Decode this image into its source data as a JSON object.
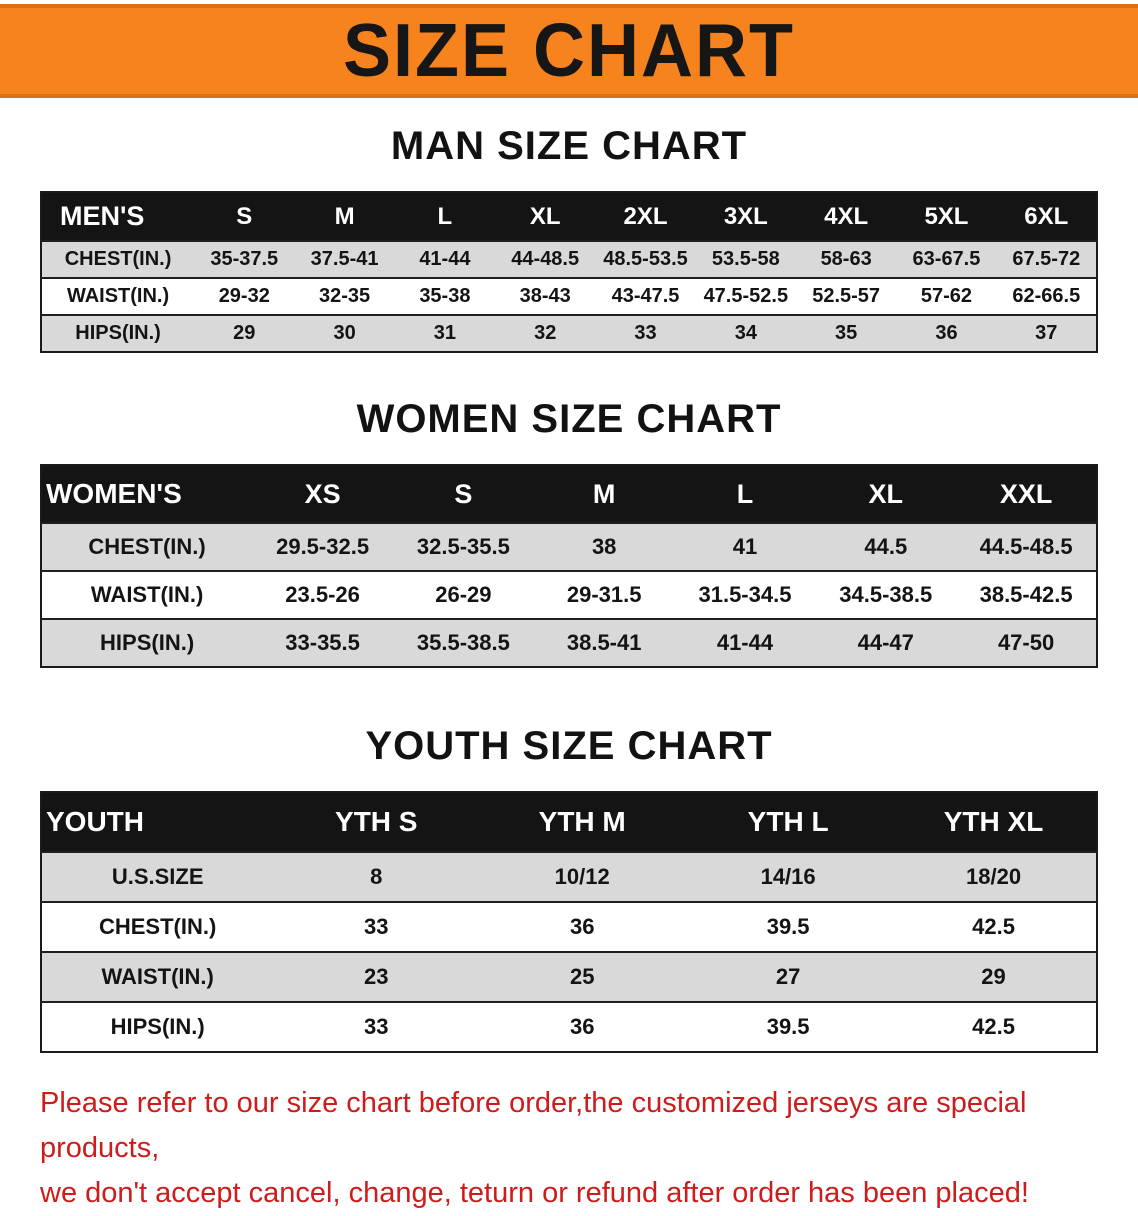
{
  "banner": {
    "title": "SIZE CHART",
    "bg_color": "#f6831d"
  },
  "sections": {
    "men": {
      "heading": "MAN SIZE CHART",
      "table": {
        "header": [
          "MEN'S",
          "S",
          "M",
          "L",
          "XL",
          "2XL",
          "3XL",
          "4XL",
          "5XL",
          "6XL"
        ],
        "rows": [
          [
            "CHEST(IN.)",
            "35-37.5",
            "37.5-41",
            "41-44",
            "44-48.5",
            "48.5-53.5",
            "53.5-58",
            "58-63",
            "63-67.5",
            "67.5-72"
          ],
          [
            "WAIST(IN.)",
            "29-32",
            "32-35",
            "35-38",
            "38-43",
            "43-47.5",
            "47.5-52.5",
            "52.5-57",
            "57-62",
            "62-66.5"
          ],
          [
            "HIPS(IN.)",
            "29",
            "30",
            "31",
            "32",
            "33",
            "34",
            "35",
            "36",
            "37"
          ]
        ]
      }
    },
    "women": {
      "heading": "WOMEN SIZE CHART",
      "table": {
        "header": [
          "WOMEN'S",
          "XS",
          "S",
          "M",
          "L",
          "XL",
          "XXL"
        ],
        "rows": [
          [
            "CHEST(IN.)",
            "29.5-32.5",
            "32.5-35.5",
            "38",
            "41",
            "44.5",
            "44.5-48.5"
          ],
          [
            "WAIST(IN.)",
            "23.5-26",
            "26-29",
            "29-31.5",
            "31.5-34.5",
            "34.5-38.5",
            "38.5-42.5"
          ],
          [
            "HIPS(IN.)",
            "33-35.5",
            "35.5-38.5",
            "38.5-41",
            "41-44",
            "44-47",
            "47-50"
          ]
        ]
      }
    },
    "youth": {
      "heading": "YOUTH SIZE CHART",
      "table": {
        "header": [
          "YOUTH",
          "YTH S",
          "YTH M",
          "YTH L",
          "YTH XL"
        ],
        "rows": [
          [
            "U.S.SIZE",
            "8",
            "10/12",
            "14/16",
            "18/20"
          ],
          [
            "CHEST(IN.)",
            "33",
            "36",
            "39.5",
            "42.5"
          ],
          [
            "WAIST(IN.)",
            "23",
            "25",
            "27",
            "29"
          ],
          [
            "HIPS(IN.)",
            "33",
            "36",
            "39.5",
            "42.5"
          ]
        ]
      }
    }
  },
  "disclaimer": {
    "line1": "Please refer to our size chart before order,the customized jerseys are special products,",
    "line2": "we don't accept cancel, change, teturn or refund after order has been placed!"
  }
}
